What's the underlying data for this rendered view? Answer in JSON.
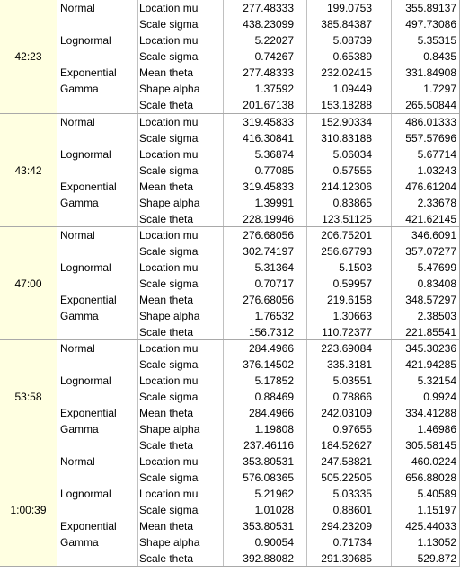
{
  "groups": [
    {
      "time": "42:23",
      "rows": [
        {
          "dist": "Normal",
          "param": "Location mu",
          "v1": "277.48333",
          "v2": "199.0753",
          "v3": "355.89137"
        },
        {
          "dist": "",
          "param": "Scale sigma",
          "v1": "438.23099",
          "v2": "385.84387",
          "v3": "497.73086"
        },
        {
          "dist": "Lognormal",
          "param": "Location mu",
          "v1": "5.22027",
          "v2": "5.08739",
          "v3": "5.35315"
        },
        {
          "dist": "",
          "param": "Scale sigma",
          "v1": "0.74267",
          "v2": "0.65389",
          "v3": "0.8435"
        },
        {
          "dist": "Exponential",
          "param": "Mean theta",
          "v1": "277.48333",
          "v2": "232.02415",
          "v3": "331.84908"
        },
        {
          "dist": "Gamma",
          "param": "Shape alpha",
          "v1": "1.37592",
          "v2": "1.09449",
          "v3": "1.7297"
        },
        {
          "dist": "",
          "param": "Scale theta",
          "v1": "201.67138",
          "v2": "153.18288",
          "v3": "265.50844"
        }
      ]
    },
    {
      "time": "43:42",
      "rows": [
        {
          "dist": "Normal",
          "param": "Location mu",
          "v1": "319.45833",
          "v2": "152.90334",
          "v3": "486.01333"
        },
        {
          "dist": "",
          "param": "Scale sigma",
          "v1": "416.30841",
          "v2": "310.83188",
          "v3": "557.57696"
        },
        {
          "dist": "Lognormal",
          "param": "Location mu",
          "v1": "5.36874",
          "v2": "5.06034",
          "v3": "5.67714"
        },
        {
          "dist": "",
          "param": "Scale sigma",
          "v1": "0.77085",
          "v2": "0.57555",
          "v3": "1.03243"
        },
        {
          "dist": "Exponential",
          "param": "Mean theta",
          "v1": "319.45833",
          "v2": "214.12306",
          "v3": "476.61204"
        },
        {
          "dist": "Gamma",
          "param": "Shape alpha",
          "v1": "1.39991",
          "v2": "0.83865",
          "v3": "2.33678"
        },
        {
          "dist": "",
          "param": "Scale theta",
          "v1": "228.19946",
          "v2": "123.51125",
          "v3": "421.62145"
        }
      ]
    },
    {
      "time": "47:00",
      "rows": [
        {
          "dist": "Normal",
          "param": "Location mu",
          "v1": "276.68056",
          "v2": "206.75201",
          "v3": "346.6091"
        },
        {
          "dist": "",
          "param": "Scale sigma",
          "v1": "302.74197",
          "v2": "256.67793",
          "v3": "357.07277"
        },
        {
          "dist": "Lognormal",
          "param": "Location mu",
          "v1": "5.31364",
          "v2": "5.1503",
          "v3": "5.47699"
        },
        {
          "dist": "",
          "param": "Scale sigma",
          "v1": "0.70717",
          "v2": "0.59957",
          "v3": "0.83408"
        },
        {
          "dist": "Exponential",
          "param": "Mean theta",
          "v1": "276.68056",
          "v2": "219.6158",
          "v3": "348.57297"
        },
        {
          "dist": "Gamma",
          "param": "Shape alpha",
          "v1": "1.76532",
          "v2": "1.30663",
          "v3": "2.38503"
        },
        {
          "dist": "",
          "param": "Scale theta",
          "v1": "156.7312",
          "v2": "110.72377",
          "v3": "221.85541"
        }
      ]
    },
    {
      "time": "53:58",
      "rows": [
        {
          "dist": "Normal",
          "param": "Location mu",
          "v1": "284.4966",
          "v2": "223.69084",
          "v3": "345.30236"
        },
        {
          "dist": "",
          "param": "Scale sigma",
          "v1": "376.14502",
          "v2": "335.3181",
          "v3": "421.94285"
        },
        {
          "dist": "Lognormal",
          "param": "Location mu",
          "v1": "5.17852",
          "v2": "5.03551",
          "v3": "5.32154"
        },
        {
          "dist": "",
          "param": "Scale sigma",
          "v1": "0.88469",
          "v2": "0.78866",
          "v3": "0.9924"
        },
        {
          "dist": "Exponential",
          "param": "Mean theta",
          "v1": "284.4966",
          "v2": "242.03109",
          "v3": "334.41288"
        },
        {
          "dist": "Gamma",
          "param": "Shape alpha",
          "v1": "1.19808",
          "v2": "0.97655",
          "v3": "1.46986"
        },
        {
          "dist": "",
          "param": "Scale theta",
          "v1": "237.46116",
          "v2": "184.52627",
          "v3": "305.58145"
        }
      ]
    },
    {
      "time": "1:00:39",
      "rows": [
        {
          "dist": "Normal",
          "param": "Location mu",
          "v1": "353.80531",
          "v2": "247.58821",
          "v3": "460.0224"
        },
        {
          "dist": "",
          "param": "Scale sigma",
          "v1": "576.08365",
          "v2": "505.22505",
          "v3": "656.88028"
        },
        {
          "dist": "Lognormal",
          "param": "Location mu",
          "v1": "5.21962",
          "v2": "5.03335",
          "v3": "5.40589"
        },
        {
          "dist": "",
          "param": "Scale sigma",
          "v1": "1.01028",
          "v2": "0.88601",
          "v3": "1.15197"
        },
        {
          "dist": "Exponential",
          "param": "Mean theta",
          "v1": "353.80531",
          "v2": "294.23209",
          "v3": "425.44033"
        },
        {
          "dist": "Gamma",
          "param": "Shape alpha",
          "v1": "0.90054",
          "v2": "0.71734",
          "v3": "1.13052"
        },
        {
          "dist": "",
          "param": "Scale theta",
          "v1": "392.88082",
          "v2": "291.30685",
          "v3": "529.872"
        }
      ]
    }
  ]
}
